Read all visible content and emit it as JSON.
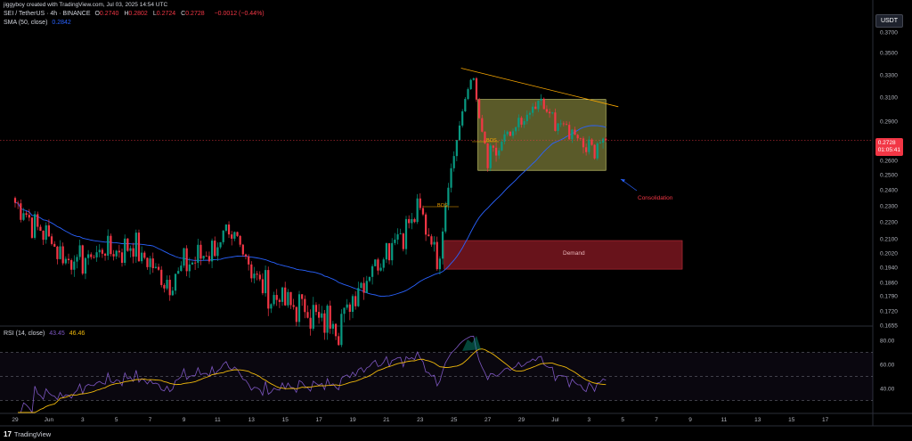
{
  "header": {
    "credit": "jiggyboy created with TradingView.com, Jul 03, 2025 14:54 UTC",
    "symbol": "SEI / TetherUS · 4h · BINANCE",
    "ohlc": [
      {
        "k": "O",
        "v": "0.2740"
      },
      {
        "k": "H",
        "v": "0.2802"
      },
      {
        "k": "L",
        "v": "0.2724"
      },
      {
        "k": "C",
        "v": "0.2728"
      }
    ],
    "change": "−0.0012 (−0.44%)",
    "sma_label": "SMA (50, close)",
    "sma_value": "0.2842",
    "unit": "USDT"
  },
  "colors": {
    "up": "#089981",
    "down": "#f23645",
    "sma": "#2962ff",
    "rsi": "#7e57c2",
    "rsi_ma": "#f0b90b",
    "zone_consolidation": "#c8c85a",
    "zone_demand": "#8b1a24",
    "trendline": "#f7a600"
  },
  "price_badge": {
    "price": "0.2728",
    "timer": "01:05:41"
  },
  "annotations": {
    "consolidation": "Consolidation",
    "demand": "Demand",
    "bos1": "BOS",
    "bos2": "BOS"
  },
  "rsi": {
    "label": "RSI (14, close)",
    "value": "43.45",
    "ma": "46.46"
  },
  "brand": "TradingView",
  "chart_data": {
    "type": "candlestick",
    "price_axis_ticks": [
      "0.3700",
      "0.3500",
      "0.3300",
      "0.3100",
      "0.2900",
      "0.2700",
      "0.2600",
      "0.2500",
      "0.2400",
      "0.2300",
      "0.2200",
      "0.2100",
      "0.2020",
      "0.1940",
      "0.1860",
      "0.1790",
      "0.1720",
      "0.1655"
    ],
    "rsi_axis_ticks": [
      "80.00",
      "60.00",
      "40.00"
    ],
    "time_axis_ticks": [
      "29",
      "Jun",
      "3",
      "5",
      "7",
      "9",
      "11",
      "13",
      "15",
      "17",
      "19",
      "21",
      "23",
      "25",
      "27",
      "29",
      "Jul",
      "3",
      "5",
      "7",
      "9",
      "11",
      "13",
      "15",
      "17"
    ],
    "last_price": 0.2728,
    "sma_last": 0.2842,
    "consolidation_zone": {
      "from": "Jun 25",
      "to": "Jul 3",
      "top": 0.308,
      "bottom": 0.253
    },
    "demand_zone": {
      "from": "Jun 23",
      "to": "Jul 7",
      "top": 0.209,
      "bottom": 0.193
    },
    "trendline": {
      "start": [
        "Jun 24",
        0.336
      ],
      "end": [
        "Jul 3",
        0.302
      ]
    },
    "key_points": [
      {
        "t": "May 29",
        "price": 0.232
      },
      {
        "t": "Jun 1",
        "price": 0.198
      },
      {
        "t": "Jun 5",
        "price": 0.205
      },
      {
        "t": "Jun 7",
        "price": 0.188
      },
      {
        "t": "Jun 11",
        "price": 0.211
      },
      {
        "t": "Jun 13",
        "price": 0.179
      },
      {
        "t": "Jun 17",
        "price": 0.1655
      },
      {
        "t": "Jun 20",
        "price": 0.206
      },
      {
        "t": "Jun 22",
        "price": 0.226
      },
      {
        "t": "Jun 23",
        "price": 0.198
      },
      {
        "t": "Jun 25",
        "price": 0.33
      },
      {
        "t": "Jun 26",
        "price": 0.255
      },
      {
        "t": "Jun 29",
        "price": 0.304
      },
      {
        "t": "Jul 2",
        "price": 0.268
      },
      {
        "t": "Jul 3",
        "price": 0.2728
      }
    ]
  }
}
